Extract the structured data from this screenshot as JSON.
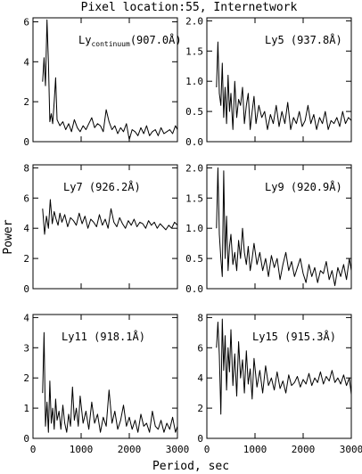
{
  "figure": {
    "title": "Pixel location:55, Internetwork",
    "ylabel": "Power",
    "xlabel": "Period, sec"
  },
  "chart_data": [
    {
      "type": "line",
      "panel_label": "Ly",
      "panel_label_sub": "continuum",
      "panel_label_tail": "(907.0Å)",
      "xlim": [
        0,
        3000
      ],
      "ylim": [
        0,
        6.2
      ],
      "yticks": [
        "0",
        "2",
        "4",
        "6"
      ],
      "ytick_values": [
        0,
        2,
        4,
        6
      ],
      "xticks": [],
      "xtick_values": [
        0,
        1000,
        2000,
        3000
      ],
      "x": [
        200,
        230,
        260,
        290,
        320,
        350,
        380,
        410,
        440,
        470,
        500,
        560,
        620,
        680,
        740,
        800,
        860,
        920,
        980,
        1040,
        1100,
        1160,
        1220,
        1280,
        1340,
        1400,
        1460,
        1520,
        1580,
        1640,
        1700,
        1760,
        1820,
        1880,
        1940,
        2000,
        2060,
        2120,
        2180,
        2240,
        2300,
        2360,
        2420,
        2480,
        2540,
        2600,
        2660,
        2720,
        2780,
        2840,
        2900,
        2960,
        3000
      ],
      "y": [
        3.0,
        4.2,
        2.8,
        6.1,
        4.0,
        1.0,
        1.4,
        0.9,
        2.0,
        3.2,
        1.1,
        0.8,
        1.0,
        0.6,
        0.9,
        0.5,
        1.1,
        0.7,
        0.5,
        0.8,
        0.6,
        0.9,
        1.2,
        0.7,
        0.9,
        0.8,
        0.5,
        1.6,
        1.0,
        0.6,
        0.8,
        0.4,
        0.7,
        0.5,
        0.9,
        0.1,
        0.6,
        0.5,
        0.3,
        0.7,
        0.4,
        0.8,
        0.3,
        0.5,
        0.6,
        0.3,
        0.7,
        0.4,
        0.5,
        0.6,
        0.4,
        0.8,
        0.6
      ]
    },
    {
      "type": "line",
      "panel_label": "Ly5 (937.8Å)",
      "panel_label_sub": "",
      "panel_label_tail": "",
      "xlim": [
        0,
        3000
      ],
      "ylim": [
        0,
        2.05
      ],
      "yticks": [
        "0.0",
        "0.5",
        "1.0",
        "1.5",
        "2.0"
      ],
      "ytick_values": [
        0,
        0.5,
        1.0,
        1.5,
        2.0
      ],
      "xticks": [],
      "xtick_values": [
        0,
        1000,
        2000,
        3000
      ],
      "x": [
        200,
        230,
        260,
        290,
        320,
        350,
        380,
        410,
        440,
        470,
        500,
        540,
        580,
        620,
        660,
        700,
        740,
        780,
        820,
        860,
        900,
        940,
        980,
        1020,
        1080,
        1140,
        1200,
        1260,
        1320,
        1380,
        1440,
        1500,
        1560,
        1620,
        1680,
        1740,
        1800,
        1860,
        1920,
        1980,
        2040,
        2100,
        2160,
        2220,
        2280,
        2340,
        2400,
        2460,
        2520,
        2580,
        2640,
        2700,
        2760,
        2820,
        2880,
        2940,
        3000
      ],
      "y": [
        0.9,
        1.65,
        0.8,
        0.6,
        1.3,
        0.4,
        0.9,
        0.3,
        1.1,
        0.5,
        0.8,
        0.2,
        1.0,
        0.4,
        0.7,
        0.6,
        0.9,
        0.3,
        0.6,
        0.8,
        0.2,
        0.5,
        0.75,
        0.3,
        0.6,
        0.4,
        0.5,
        0.2,
        0.45,
        0.3,
        0.6,
        0.25,
        0.5,
        0.3,
        0.65,
        0.2,
        0.4,
        0.3,
        0.5,
        0.25,
        0.35,
        0.6,
        0.3,
        0.45,
        0.2,
        0.4,
        0.3,
        0.5,
        0.2,
        0.35,
        0.3,
        0.4,
        0.25,
        0.5,
        0.3,
        0.4,
        0.35
      ]
    },
    {
      "type": "line",
      "panel_label": "Ly7 (926.2Å)",
      "panel_label_sub": "",
      "panel_label_tail": "",
      "xlim": [
        0,
        3000
      ],
      "ylim": [
        0,
        8.2
      ],
      "yticks": [
        "0",
        "2",
        "4",
        "6",
        "8"
      ],
      "ytick_values": [
        0,
        2,
        4,
        6,
        8
      ],
      "xticks": [],
      "xtick_values": [
        0,
        1000,
        2000,
        3000
      ],
      "x": [
        200,
        240,
        280,
        320,
        360,
        400,
        440,
        480,
        520,
        560,
        600,
        660,
        720,
        780,
        840,
        900,
        960,
        1020,
        1080,
        1140,
        1200,
        1260,
        1320,
        1380,
        1440,
        1500,
        1560,
        1620,
        1680,
        1740,
        1800,
        1860,
        1920,
        1980,
        2040,
        2100,
        2160,
        2220,
        2280,
        2340,
        2400,
        2460,
        2520,
        2580,
        2640,
        2700,
        2760,
        2820,
        2880,
        2940,
        3000
      ],
      "y": [
        5.3,
        3.6,
        4.8,
        4.0,
        5.9,
        4.3,
        5.1,
        4.6,
        4.2,
        5.0,
        4.4,
        4.9,
        4.1,
        4.7,
        4.5,
        4.2,
        5.0,
        4.3,
        4.8,
        4.0,
        4.6,
        4.4,
        4.1,
        4.9,
        4.2,
        4.6,
        4.0,
        5.3,
        4.4,
        4.1,
        4.7,
        4.3,
        4.0,
        4.5,
        4.2,
        4.6,
        4.1,
        4.4,
        4.3,
        4.0,
        4.5,
        4.2,
        4.4,
        4.0,
        4.3,
        4.1,
        3.9,
        4.2,
        4.0,
        4.4,
        4.2
      ]
    },
    {
      "type": "line",
      "panel_label": "Ly9 (920.9Å)",
      "panel_label_sub": "",
      "panel_label_tail": "",
      "xlim": [
        0,
        3000
      ],
      "ylim": [
        0,
        2.05
      ],
      "yticks": [
        "0.0",
        "0.5",
        "1.0",
        "1.5",
        "2.0"
      ],
      "ytick_values": [
        0,
        0.5,
        1.0,
        1.5,
        2.0
      ],
      "xticks": [],
      "xtick_values": [
        0,
        1000,
        2000,
        3000
      ],
      "x": [
        200,
        230,
        260,
        290,
        320,
        350,
        380,
        410,
        440,
        470,
        500,
        540,
        580,
        620,
        660,
        700,
        740,
        780,
        820,
        860,
        900,
        940,
        980,
        1040,
        1100,
        1160,
        1220,
        1280,
        1340,
        1400,
        1460,
        1520,
        1580,
        1640,
        1700,
        1760,
        1820,
        1880,
        1940,
        2000,
        2060,
        2120,
        2180,
        2240,
        2300,
        2360,
        2420,
        2480,
        2540,
        2600,
        2660,
        2720,
        2780,
        2840,
        2900,
        2960,
        3000
      ],
      "y": [
        1.0,
        2.0,
        0.9,
        0.5,
        0.2,
        1.95,
        0.5,
        1.2,
        0.3,
        0.7,
        0.9,
        0.4,
        0.6,
        0.3,
        0.8,
        0.5,
        1.0,
        0.6,
        0.4,
        0.7,
        0.3,
        0.5,
        0.75,
        0.4,
        0.6,
        0.3,
        0.5,
        0.2,
        0.55,
        0.35,
        0.5,
        0.15,
        0.4,
        0.6,
        0.3,
        0.45,
        0.2,
        0.35,
        0.5,
        0.25,
        0.1,
        0.4,
        0.2,
        0.35,
        0.1,
        0.3,
        0.25,
        0.45,
        0.15,
        0.3,
        0.05,
        0.35,
        0.2,
        0.4,
        0.15,
        0.5,
        0.3
      ]
    },
    {
      "type": "line",
      "panel_label": "Ly11 (918.1Å)",
      "panel_label_sub": "",
      "panel_label_tail": "",
      "xlim": [
        0,
        3000
      ],
      "ylim": [
        0,
        4.1
      ],
      "yticks": [
        "0",
        "1",
        "2",
        "3",
        "4"
      ],
      "ytick_values": [
        0,
        1,
        2,
        3,
        4
      ],
      "xticks": [
        "0",
        "1000",
        "2000",
        "3000"
      ],
      "xtick_values": [
        0,
        1000,
        2000,
        3000
      ],
      "x": [
        200,
        230,
        260,
        290,
        320,
        350,
        380,
        410,
        440,
        470,
        500,
        540,
        580,
        620,
        660,
        700,
        740,
        780,
        820,
        860,
        900,
        940,
        980,
        1040,
        1100,
        1160,
        1220,
        1280,
        1340,
        1400,
        1460,
        1520,
        1580,
        1640,
        1700,
        1760,
        1820,
        1880,
        1940,
        2000,
        2060,
        2120,
        2180,
        2240,
        2300,
        2360,
        2420,
        2480,
        2540,
        2600,
        2660,
        2720,
        2780,
        2840,
        2900,
        2960,
        3000
      ],
      "y": [
        1.5,
        3.5,
        0.4,
        1.2,
        0.2,
        1.9,
        0.5,
        1.0,
        0.3,
        1.3,
        0.6,
        0.9,
        0.3,
        1.1,
        0.5,
        0.2,
        0.8,
        0.4,
        1.7,
        0.6,
        1.0,
        0.4,
        1.4,
        0.5,
        0.9,
        0.3,
        1.2,
        0.5,
        0.8,
        0.2,
        0.7,
        0.4,
        1.6,
        0.5,
        0.9,
        0.3,
        0.6,
        1.1,
        0.4,
        0.7,
        0.3,
        0.6,
        0.2,
        0.8,
        0.4,
        0.5,
        0.2,
        0.9,
        0.4,
        0.3,
        0.6,
        0.2,
        0.5,
        0.3,
        0.7,
        0.2,
        0.4
      ]
    },
    {
      "type": "line",
      "panel_label": "Ly15 (915.3Å)",
      "panel_label_sub": "",
      "panel_label_tail": "",
      "xlim": [
        0,
        3000
      ],
      "ylim": [
        0,
        8.2
      ],
      "yticks": [
        "0",
        "2",
        "4",
        "6",
        "8"
      ],
      "ytick_values": [
        0,
        2,
        4,
        6,
        8
      ],
      "xticks": [
        "0",
        "1000",
        "2000",
        "3000"
      ],
      "xtick_values": [
        0,
        1000,
        2000,
        3000
      ],
      "x": [
        200,
        230,
        260,
        290,
        320,
        350,
        380,
        410,
        440,
        470,
        500,
        540,
        580,
        620,
        660,
        700,
        740,
        780,
        820,
        860,
        900,
        940,
        980,
        1040,
        1100,
        1160,
        1220,
        1280,
        1340,
        1400,
        1460,
        1520,
        1580,
        1640,
        1700,
        1760,
        1820,
        1880,
        1940,
        2000,
        2060,
        2120,
        2180,
        2240,
        2300,
        2360,
        2420,
        2480,
        2540,
        2600,
        2660,
        2720,
        2780,
        2840,
        2900,
        2960,
        3000
      ],
      "y": [
        6.0,
        7.7,
        5.5,
        1.6,
        7.9,
        4.5,
        6.8,
        3.2,
        6.0,
        4.4,
        7.2,
        3.5,
        5.6,
        2.8,
        6.4,
        4.0,
        5.2,
        3.0,
        5.8,
        3.6,
        4.6,
        2.6,
        5.3,
        3.4,
        4.5,
        3.0,
        4.8,
        3.5,
        4.0,
        3.2,
        4.4,
        3.3,
        3.8,
        3.0,
        4.2,
        3.5,
        3.7,
        4.1,
        3.4,
        3.9,
        3.6,
        4.3,
        3.5,
        4.0,
        3.7,
        4.4,
        3.6,
        4.1,
        3.8,
        4.5,
        3.7,
        4.0,
        3.6,
        4.2,
        3.5,
        4.0,
        2.9
      ]
    }
  ]
}
